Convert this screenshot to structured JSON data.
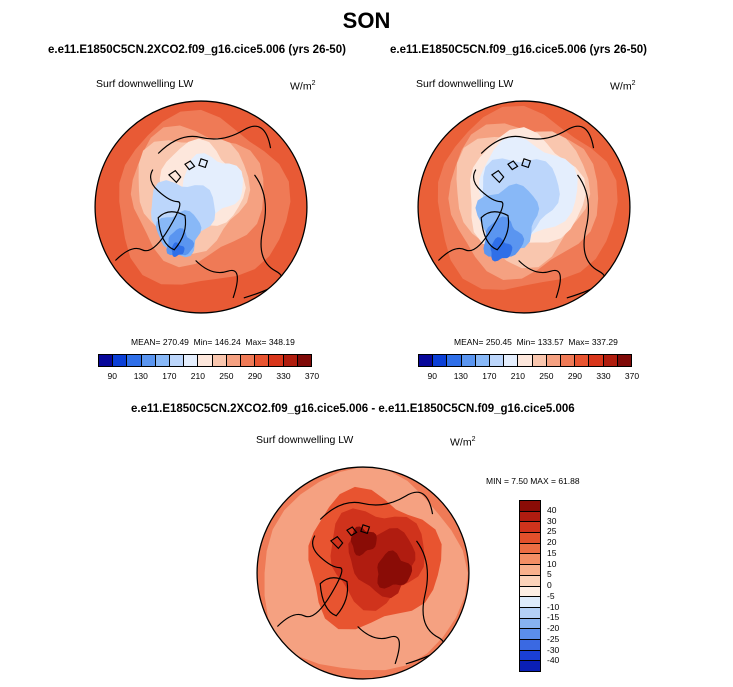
{
  "chart_data": [
    {
      "type": "heatmap",
      "projection": "north-polar-stereographic",
      "title": "e.e11.E1850C5CN.2XCO2.f09_g16.cice5.006 (yrs 26-50)",
      "variable": "Surf downwelling LW",
      "units": "W/m",
      "units_exponent": "2",
      "stats": {
        "mean_label": "MEAN=",
        "mean": "270.49",
        "min_label": "Min=",
        "min": "146.24",
        "max_label": "Max=",
        "max": "348.19"
      },
      "colorbar": {
        "orientation": "horizontal",
        "tick_labels": [
          "90",
          "130",
          "170",
          "210",
          "250",
          "290",
          "330",
          "370"
        ],
        "colors": [
          "#08089a",
          "#0b3fd6",
          "#2f6fe8",
          "#5a95f0",
          "#88b8f7",
          "#bcd6fb",
          "#e4eefd",
          "#fde7dc",
          "#f9c6ae",
          "#f5a181",
          "#ef7a56",
          "#e85430",
          "#d8361b",
          "#b01d0e",
          "#7f0a08"
        ]
      }
    },
    {
      "type": "heatmap",
      "projection": "north-polar-stereographic",
      "title": "e.e11.E1850C5CN.f09_g16.cice5.006 (yrs 26-50)",
      "variable": "Surf downwelling LW",
      "units": "W/m",
      "units_exponent": "2",
      "stats": {
        "mean_label": "MEAN=",
        "mean": "250.45",
        "min_label": "Min=",
        "min": "133.57",
        "max_label": "Max=",
        "max": "337.29"
      },
      "colorbar": {
        "orientation": "horizontal",
        "tick_labels": [
          "90",
          "130",
          "170",
          "210",
          "250",
          "290",
          "330",
          "370"
        ],
        "colors": [
          "#08089a",
          "#0b3fd6",
          "#2f6fe8",
          "#5a95f0",
          "#88b8f7",
          "#bcd6fb",
          "#e4eefd",
          "#fde7dc",
          "#f9c6ae",
          "#f5a181",
          "#ef7a56",
          "#e85430",
          "#d8361b",
          "#b01d0e",
          "#7f0a08"
        ]
      }
    },
    {
      "type": "heatmap",
      "projection": "north-polar-stereographic",
      "title": "e.e11.E1850C5CN.2XCO2.f09_g16.cice5.006 - e.e11.E1850C5CN.f09_g16.cice5.006",
      "variable": "Surf downwelling LW",
      "units": "W/m",
      "units_exponent": "2",
      "stats": {
        "min_label": "MIN =",
        "min": "7.50",
        "max_label": "MAX =",
        "max": "61.88"
      },
      "colorbar": {
        "orientation": "vertical",
        "tick_labels": [
          "40",
          "30",
          "25",
          "20",
          "15",
          "10",
          "5",
          "0",
          "-5",
          "-10",
          "-15",
          "-20",
          "-25",
          "-30",
          "-40"
        ],
        "colors": [
          "#8a0c06",
          "#b01c10",
          "#d0331c",
          "#e2502b",
          "#ec6d43",
          "#f38e64",
          "#f8b08c",
          "#fbd2b9",
          "#fdeee4",
          "#deebfb",
          "#b4d0f6",
          "#86b1f0",
          "#5b8eea",
          "#3a69e2",
          "#1a3fd6",
          "#0a1fb5"
        ]
      }
    }
  ],
  "header": {
    "season": "SON"
  }
}
